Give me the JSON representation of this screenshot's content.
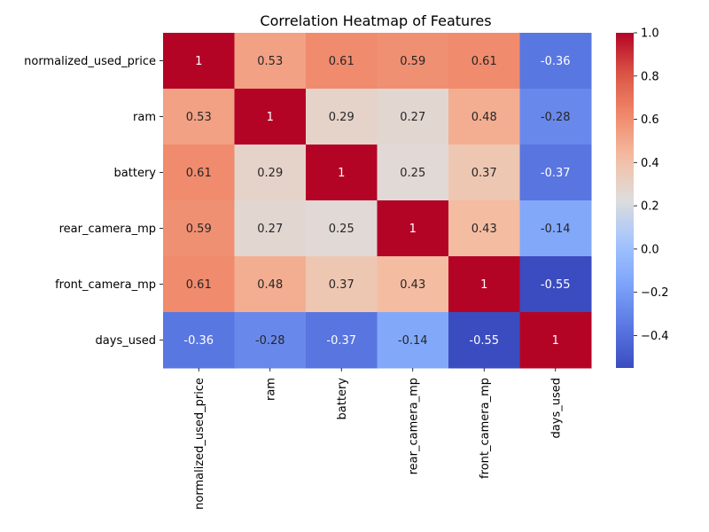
{
  "chart_data": {
    "type": "heatmap",
    "title": "Correlation Heatmap of Features",
    "rows": [
      "normalized_used_price",
      "ram",
      "battery",
      "rear_camera_mp",
      "front_camera_mp",
      "days_used"
    ],
    "columns": [
      "normalized_used_price",
      "ram",
      "battery",
      "rear_camera_mp",
      "front_camera_mp",
      "days_used"
    ],
    "values": [
      [
        1,
        0.53,
        0.61,
        0.59,
        0.61,
        -0.36
      ],
      [
        0.53,
        1,
        0.29,
        0.27,
        0.48,
        -0.28
      ],
      [
        0.61,
        0.29,
        1,
        0.25,
        0.37,
        -0.37
      ],
      [
        0.59,
        0.27,
        0.25,
        1,
        0.43,
        -0.14
      ],
      [
        0.61,
        0.48,
        0.37,
        0.43,
        1,
        -0.55
      ],
      [
        -0.36,
        -0.28,
        -0.37,
        -0.14,
        -0.55,
        1
      ]
    ],
    "colormap": "coolwarm",
    "vmin": -0.55,
    "vmax": 1.0,
    "colorbar_ticks": [
      -0.4,
      -0.2,
      0.0,
      0.2,
      0.4,
      0.6,
      0.8,
      1.0
    ],
    "colorbar_tick_labels": [
      "−0.4",
      "−0.2",
      "0.0",
      "0.2",
      "0.4",
      "0.6",
      "0.8",
      "1.0"
    ],
    "annotations": true,
    "grid": false
  }
}
